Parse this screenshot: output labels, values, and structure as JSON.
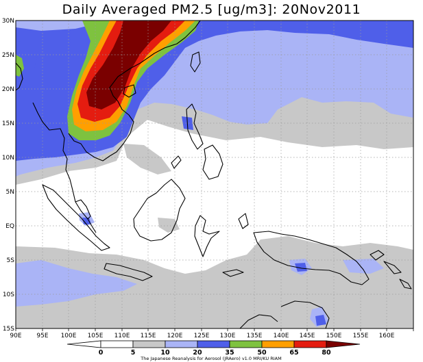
{
  "title": "Daily Averaged PM2.5 [ug/m3]: 20Nov2011",
  "map": {
    "lon_labels": [
      "90E",
      "95E",
      "100E",
      "105E",
      "110E",
      "115E",
      "120E",
      "125E",
      "130E",
      "135E",
      "140E",
      "145E",
      "150E",
      "155E",
      "160E"
    ],
    "lat_labels": [
      "30N",
      "25N",
      "20N",
      "15N",
      "10N",
      "5N",
      "EQ",
      "5S",
      "10S",
      "15S"
    ]
  },
  "colorbar": {
    "levels": [
      "0",
      "5",
      "10",
      "20",
      "35",
      "50",
      "65",
      "80"
    ],
    "colors": [
      "#ffffff",
      "#c8c8c8",
      "#aab4f6",
      "#4f5fe9",
      "#7ec23f",
      "#ff9f00",
      "#e41c10",
      "#7a0000"
    ]
  },
  "credit": "The Japanese Reanalysis for Aerosol (JRAero) v1.0 MRI/KU RIAM"
}
